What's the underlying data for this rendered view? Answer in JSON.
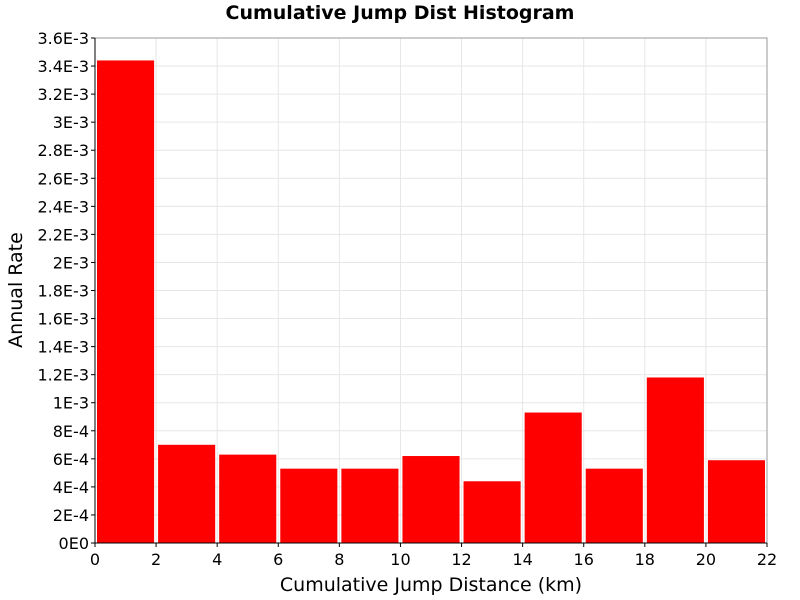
{
  "chart_data": {
    "type": "bar",
    "title": "Cumulative Jump Dist Histogram",
    "xlabel": "Cumulative Jump Distance (km)",
    "ylabel": "Annual Rate",
    "xlim": [
      0,
      22
    ],
    "ylim": [
      0,
      0.0036
    ],
    "grid": true,
    "bar_color": "#ff0000",
    "bins": [
      {
        "x0": 0,
        "x1": 2,
        "value": 0.00344
      },
      {
        "x0": 2,
        "x1": 4,
        "value": 0.0007
      },
      {
        "x0": 4,
        "x1": 6,
        "value": 0.00063
      },
      {
        "x0": 6,
        "x1": 8,
        "value": 0.00053
      },
      {
        "x0": 8,
        "x1": 10,
        "value": 0.00053
      },
      {
        "x0": 10,
        "x1": 12,
        "value": 0.00062
      },
      {
        "x0": 12,
        "x1": 14,
        "value": 0.00044
      },
      {
        "x0": 14,
        "x1": 16,
        "value": 0.00093
      },
      {
        "x0": 16,
        "x1": 18,
        "value": 0.00053
      },
      {
        "x0": 18,
        "x1": 20,
        "value": 0.00118
      },
      {
        "x0": 20,
        "x1": 22,
        "value": 0.00059
      }
    ],
    "x_ticks": [
      {
        "value": 0,
        "label": "0"
      },
      {
        "value": 2,
        "label": "2"
      },
      {
        "value": 4,
        "label": "4"
      },
      {
        "value": 6,
        "label": "6"
      },
      {
        "value": 8,
        "label": "8"
      },
      {
        "value": 10,
        "label": "10"
      },
      {
        "value": 12,
        "label": "12"
      },
      {
        "value": 14,
        "label": "14"
      },
      {
        "value": 16,
        "label": "16"
      },
      {
        "value": 18,
        "label": "18"
      },
      {
        "value": 20,
        "label": "20"
      },
      {
        "value": 22,
        "label": "22"
      }
    ],
    "y_ticks": [
      {
        "value": 0,
        "label": "0E0"
      },
      {
        "value": 0.0002,
        "label": "2E-4"
      },
      {
        "value": 0.0004,
        "label": "4E-4"
      },
      {
        "value": 0.0006,
        "label": "6E-4"
      },
      {
        "value": 0.0008,
        "label": "8E-4"
      },
      {
        "value": 0.001,
        "label": "1E-3"
      },
      {
        "value": 0.0012,
        "label": "1.2E-3"
      },
      {
        "value": 0.0014,
        "label": "1.4E-3"
      },
      {
        "value": 0.0016,
        "label": "1.6E-3"
      },
      {
        "value": 0.0018,
        "label": "1.8E-3"
      },
      {
        "value": 0.002,
        "label": "2E-3"
      },
      {
        "value": 0.0022,
        "label": "2.2E-3"
      },
      {
        "value": 0.0024,
        "label": "2.4E-3"
      },
      {
        "value": 0.0026,
        "label": "2.6E-3"
      },
      {
        "value": 0.0028,
        "label": "2.8E-3"
      },
      {
        "value": 0.003,
        "label": "3E-3"
      },
      {
        "value": 0.0032,
        "label": "3.2E-3"
      },
      {
        "value": 0.0034,
        "label": "3.4E-3"
      },
      {
        "value": 0.0036,
        "label": "3.6E-3"
      }
    ]
  }
}
